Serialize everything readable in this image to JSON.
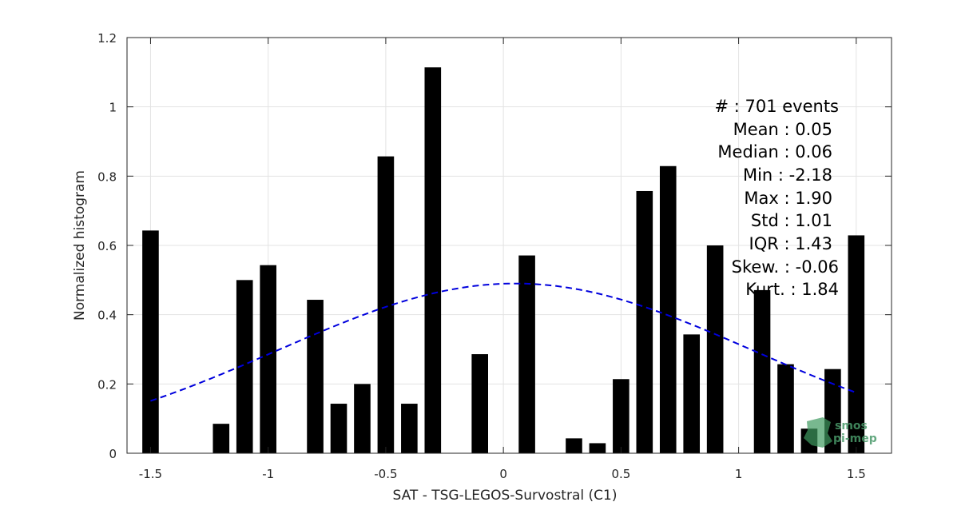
{
  "chart_data": {
    "type": "bar",
    "xlabel": "SAT - TSG-LEGOS-Survostral (C1)",
    "ylabel": "Normalized histogram",
    "xlim": [
      -1.6,
      1.65
    ],
    "ylim": [
      0,
      1.2
    ],
    "grid": true,
    "bar_width": 0.07,
    "xticks": [
      -1.5,
      -1,
      -0.5,
      0,
      0.5,
      1,
      1.5
    ],
    "xtick_labels": [
      "-1.5",
      "-1",
      "-0.5",
      "0",
      "0.5",
      "1",
      "1.5"
    ],
    "yticks": [
      0,
      0.2,
      0.4,
      0.6,
      0.8,
      1,
      1.2
    ],
    "ytick_labels": [
      "0",
      "0.2",
      "0.4",
      "0.6",
      "0.8",
      "1",
      "1.2"
    ],
    "bars": {
      "x": [
        -1.5,
        -1.4,
        -1.3,
        -1.2,
        -1.1,
        -1.0,
        -0.9,
        -0.8,
        -0.7,
        -0.6,
        -0.5,
        -0.4,
        -0.3,
        -0.2,
        -0.1,
        0.0,
        0.1,
        0.2,
        0.3,
        0.4,
        0.5,
        0.6,
        0.7,
        0.8,
        0.9,
        1.0,
        1.1,
        1.2,
        1.3,
        1.4,
        1.5
      ],
      "values": [
        0.643,
        0,
        0,
        0.085,
        0.5,
        0.543,
        0,
        0.443,
        0.143,
        0.2,
        0.857,
        0.143,
        1.114,
        0,
        0.286,
        0,
        0.571,
        0,
        0.043,
        0.029,
        0.214,
        0.757,
        0.829,
        0.343,
        0.6,
        0,
        0.471,
        0.257,
        0.071,
        0.243,
        0.629
      ]
    },
    "fit_curve": {
      "style": "dashed",
      "color": "#0000dd",
      "mean": 0.05,
      "std": 1.01,
      "peak": 0.49,
      "x_range": [
        -1.5,
        1.5
      ]
    },
    "stats": [
      "#  : 701 events",
      "Mean : 0.05",
      "Median : 0.06",
      "Min : -2.18",
      "Max : 1.90",
      "Std : 1.01",
      "IQR : 1.43",
      "Skew. : -0.06",
      "Kurt. : 1.84"
    ]
  },
  "logo": {
    "line1": "smos",
    "line2": "pi-mep",
    "color": "#3f9a60"
  }
}
